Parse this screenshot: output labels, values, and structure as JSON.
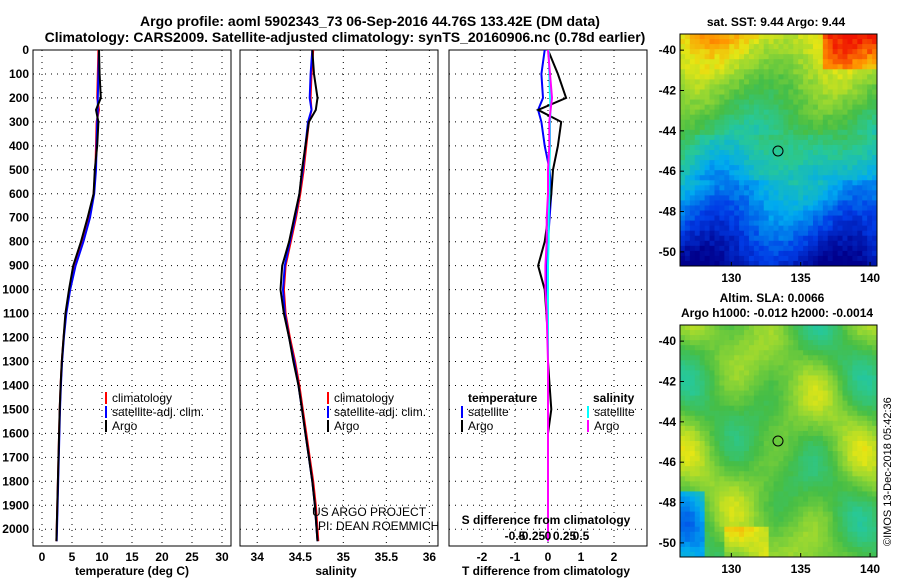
{
  "title": {
    "line1": "Argo profile: aoml 5902343_73 06-Sep-2016 44.76S 133.42E (DM data)",
    "line2": "Climatology: CARS2009. Satellite-adjusted climatology: synTS_20160906.nc (0.78d earlier)"
  },
  "colors": {
    "climatology": "#ff0000",
    "satellite": "#0000ff",
    "argo": "#000000",
    "salinity_satellite": "#00ffff",
    "salinity_argo": "#ff00ff"
  },
  "chart_data": [
    {
      "type": "line",
      "name": "temperature",
      "xlabel": "temperature (deg C)",
      "ylabel": "",
      "xlim": [
        -1.5,
        31.5
      ],
      "ylim": [
        2070,
        0
      ],
      "xticks": [
        "0",
        "5",
        "10",
        "15",
        "20",
        "25",
        "30"
      ],
      "yticks": [
        "0",
        "100",
        "200",
        "300",
        "400",
        "500",
        "600",
        "700",
        "800",
        "900",
        "1000",
        "1100",
        "1200",
        "1300",
        "1400",
        "1500",
        "1600",
        "1700",
        "1800",
        "1900",
        "2000"
      ],
      "depth": [
        0,
        100,
        200,
        250,
        300,
        400,
        500,
        600,
        700,
        800,
        900,
        1000,
        1100,
        1200,
        1300,
        1400,
        1500,
        1600,
        1700,
        1800,
        1900,
        2000,
        2050
      ],
      "series": [
        {
          "name": "climatology",
          "values": [
            9.4,
            9.3,
            9.2,
            9.5,
            9.1,
            9.0,
            8.9,
            8.6,
            7.9,
            6.8,
            5.5,
            4.6,
            4.0,
            3.6,
            3.3,
            3.1,
            2.95,
            2.85,
            2.75,
            2.65,
            2.55,
            2.45,
            2.4
          ]
        },
        {
          "name": "satellite-adj. clim.",
          "values": [
            9.5,
            9.4,
            9.3,
            9.3,
            9.2,
            9.1,
            9.0,
            8.7,
            8.0,
            6.9,
            5.6,
            4.7,
            4.05,
            3.65,
            3.35,
            3.15,
            3.0,
            2.9,
            2.8,
            2.7,
            2.6,
            2.5,
            2.45
          ]
        },
        {
          "name": "Argo",
          "values": [
            9.5,
            9.6,
            9.8,
            9.0,
            9.4,
            9.2,
            8.8,
            8.6,
            7.6,
            6.5,
            5.2,
            4.5,
            3.9,
            3.6,
            3.3,
            3.1,
            2.95,
            2.85,
            2.75,
            2.65,
            2.55,
            2.45,
            2.4
          ]
        }
      ],
      "legend": [
        "climatology",
        "satellite-adj. clim.",
        "Argo"
      ]
    },
    {
      "type": "line",
      "name": "salinity",
      "xlabel": "salinity",
      "xlim": [
        33.8,
        36.1
      ],
      "ylim": [
        2070,
        0
      ],
      "xticks": [
        "34",
        "34.5",
        "35",
        "35.5",
        "36"
      ],
      "depth": [
        0,
        100,
        200,
        250,
        300,
        400,
        500,
        600,
        700,
        800,
        900,
        1000,
        1100,
        1200,
        1300,
        1400,
        1500,
        1600,
        1700,
        1800,
        1900,
        2000,
        2050
      ],
      "series": [
        {
          "name": "climatology",
          "values": [
            34.65,
            34.63,
            34.62,
            34.63,
            34.6,
            34.57,
            34.54,
            34.5,
            34.45,
            34.39,
            34.33,
            34.31,
            34.33,
            34.38,
            34.44,
            34.49,
            34.53,
            34.57,
            34.61,
            34.65,
            34.68,
            34.7,
            34.71
          ]
        },
        {
          "name": "satellite-adj. clim.",
          "values": [
            34.64,
            34.62,
            34.61,
            34.63,
            34.59,
            34.56,
            34.53,
            34.49,
            34.44,
            34.38,
            34.32,
            34.3,
            34.32,
            34.37,
            34.43,
            34.48,
            34.52,
            34.56,
            34.6,
            34.64,
            34.67,
            34.69,
            34.7
          ]
        },
        {
          "name": "Argo",
          "values": [
            34.64,
            34.66,
            34.7,
            34.68,
            34.6,
            34.56,
            34.52,
            34.49,
            34.43,
            34.37,
            34.29,
            34.27,
            34.31,
            34.37,
            34.42,
            34.48,
            34.52,
            34.56,
            34.6,
            34.64,
            34.67,
            34.69,
            34.7
          ]
        }
      ],
      "legend": [
        "climatology",
        "satellite-adj. clim.",
        "Argo"
      ],
      "annotations": [
        "US ARGO PROJECT",
        "PI: DEAN ROEMMICH"
      ]
    },
    {
      "type": "line",
      "name": "difference",
      "xlabel": "T difference from climatology",
      "xlabel2": "S difference from climatology",
      "xlim": [
        -3,
        3
      ],
      "ylim": [
        2070,
        0
      ],
      "xticks": [
        "-2",
        "-1",
        "0",
        "1",
        "2"
      ],
      "xticks2": [
        "-0.5",
        "-0.25",
        "0",
        "0.25",
        "0.5"
      ],
      "depth": [
        0,
        100,
        200,
        250,
        300,
        400,
        500,
        600,
        700,
        800,
        900,
        1000,
        1100,
        1200,
        1300,
        1400,
        1500,
        1600,
        1700,
        1800,
        1900,
        2000,
        2050
      ],
      "series": [
        {
          "name": "temperature satellite",
          "values": [
            -0.1,
            -0.2,
            -0.15,
            -0.3,
            -0.2,
            -0.1,
            0.05,
            0.1,
            0.05,
            0.0,
            -0.05,
            -0.05,
            0.0,
            0.0,
            0.0,
            0.0,
            0.0,
            0.0,
            0.0,
            0.0,
            0.0,
            0.0,
            0.0
          ]
        },
        {
          "name": "temperature Argo",
          "values": [
            0.0,
            0.3,
            0.55,
            -0.3,
            0.4,
            0.3,
            0.15,
            0.1,
            0.0,
            -0.1,
            -0.3,
            -0.1,
            -0.05,
            0.0,
            0.0,
            0.05,
            0.1,
            0.0,
            0.0,
            0.0,
            0.0,
            0.0,
            0.0
          ]
        },
        {
          "name": "salinity satellite",
          "values": [
            0.01,
            0.02,
            0.03,
            0.04,
            0.03,
            0.03,
            0.02,
            0.02,
            0.01,
            0.01,
            0.0,
            0.0,
            0.0,
            0.0,
            0.0,
            0.0,
            0.0,
            0.0,
            0.0,
            0.0,
            0.0,
            0.0,
            0.0
          ]
        },
        {
          "name": "salinity Argo",
          "values": [
            0.0,
            0.03,
            0.06,
            0.04,
            0.02,
            0.02,
            0.0,
            0.0,
            -0.02,
            -0.02,
            -0.04,
            -0.04,
            -0.02,
            -0.01,
            0.0,
            0.0,
            0.0,
            0.0,
            0.0,
            0.0,
            0.0,
            0.0,
            0.0
          ]
        }
      ],
      "legend_left_title": "temperature",
      "legend_right_title": "salinity",
      "legend_left": [
        "satellite",
        "Argo"
      ],
      "legend_right": [
        "satellite",
        "Argo"
      ]
    },
    {
      "type": "heatmap",
      "name": "sst-map",
      "title": "sat. SST: 9.44  Argo: 9.44",
      "xticks": [
        "130",
        "135",
        "140"
      ],
      "yticks": [
        "-40",
        "-42",
        "-44",
        "-46",
        "-48",
        "-50"
      ],
      "marker": {
        "lon": 133.42,
        "lat": -44.76
      }
    },
    {
      "type": "heatmap",
      "name": "sla-map",
      "title_line1": "Altim. SLA: 0.0066",
      "title_line2": "Argo h1000: -0.012 h2000: -0.0014",
      "xticks": [
        "130",
        "135",
        "140"
      ],
      "yticks": [
        "-40",
        "-42",
        "-44",
        "-46",
        "-48",
        "-50"
      ],
      "marker": {
        "lon": 133.42,
        "lat": -44.76
      }
    }
  ],
  "credit": "©IMOS 13-Dec-2018 05:42:36"
}
